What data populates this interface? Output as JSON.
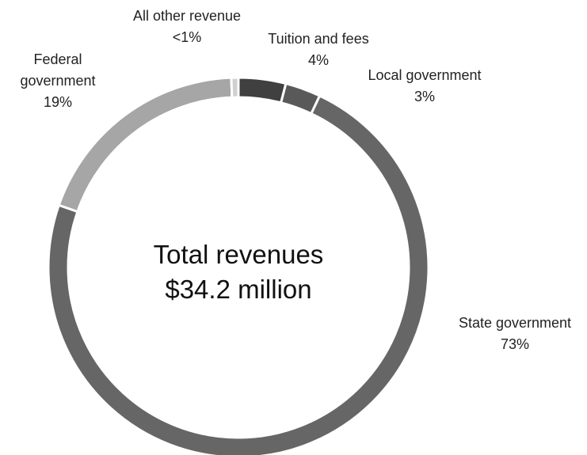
{
  "chart_data": {
    "type": "donut",
    "categories": [
      "Tuition and fees",
      "Local government",
      "State government",
      "Federal government",
      "All other revenue"
    ],
    "values": [
      4,
      3,
      73,
      19,
      0.6
    ],
    "value_labels": [
      "4%",
      "3%",
      "73%",
      "19%",
      "<1%"
    ],
    "colors": [
      "#404040",
      "#595959",
      "#666666",
      "#a6a6a6",
      "#d0d0d0"
    ],
    "center_label": [
      "Total revenues",
      "$34.2 million"
    ]
  }
}
